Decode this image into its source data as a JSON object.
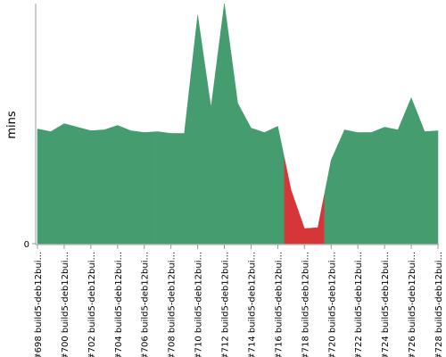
{
  "chart_data": {
    "type": "area",
    "y_label": "mins",
    "categories": [
      "#698 build5-deb12bui...",
      null,
      "#700 build5-deb12bui...",
      null,
      "#702 build5-deb12bui...",
      null,
      "#704 build5-deb12bui...",
      null,
      "#706 build5-deb12bui...",
      null,
      "#708 build5-deb12bui...",
      null,
      "#710 build5-deb12bui...",
      null,
      "#712 build5-deb12bui...",
      null,
      "#714 build5-deb12bui...",
      null,
      "#716 build5-deb12bui...",
      null,
      "#718 build5-deb12bui...",
      null,
      "#720 build5-deb12bui...",
      null,
      "#722 build5-deb12bui...",
      null,
      "#724 build5-deb12bui...",
      null,
      "#726 build5-deb12bui...",
      null,
      "#728 build5-deb12bui..."
    ],
    "values": [
      12.9,
      12.6,
      13.5,
      13.1,
      12.7,
      12.8,
      13.3,
      12.7,
      12.5,
      12.6,
      12.4,
      12.4,
      25.7,
      15.3,
      27,
      15.8,
      13.0,
      12.5,
      13.2,
      6.0,
      1.7,
      1.8,
      9.4,
      12.8,
      12.5,
      12.5,
      13.1,
      12.8,
      16.4,
      12.6,
      12.7
    ],
    "colors": [
      "#459c6e",
      "#459c6e",
      "#459c6e",
      "#459c6e",
      "#459c6e",
      "#459c6e",
      "#459c6e",
      "#459c6e",
      "#459c6e",
      "#459c6e",
      "#459c6e",
      "#459c6e",
      "#459c6e",
      "#459c6e",
      "#459c6e",
      "#459c6e",
      "#459c6e",
      "#459c6e",
      "#459c6e",
      "#d63638",
      "#d63638",
      "#d63638",
      "#459c6e",
      "#459c6e",
      "#459c6e",
      "#459c6e",
      "#459c6e",
      "#459c6e",
      "#459c6e",
      "#459c6e",
      "#459c6e"
    ],
    "ylim": [
      0,
      27
    ],
    "yticks": [
      0
    ]
  }
}
